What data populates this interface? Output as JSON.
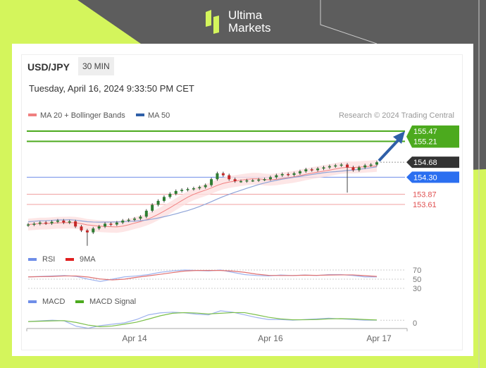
{
  "brand": {
    "name_line1": "Ultima",
    "name_line2": "Markets",
    "accent": "#d4f55c"
  },
  "header": {
    "symbol": "USD/JPY",
    "timeframe": "30 MIN",
    "datetime": "Tuesday, April 16, 2024 9:33:50 PM CET"
  },
  "chart_data": {
    "type": "candlestick",
    "legend": [
      {
        "name": "MA 20 + Bollinger Bands",
        "color": "#f08080"
      },
      {
        "name": "MA 50",
        "color": "#2f5fa8"
      }
    ],
    "credit": "Research © 2024 Trading Central",
    "levels": [
      {
        "value": 155.47,
        "label": "155.47",
        "color": "#4caa1e",
        "kind": "target"
      },
      {
        "value": 155.21,
        "label": "155.21",
        "color": "#4caa1e",
        "kind": "target"
      },
      {
        "value": 154.68,
        "label": "154.68",
        "color": "#333333",
        "kind": "last"
      },
      {
        "value": 154.3,
        "label": "154.30",
        "color": "#2b6ff0",
        "kind": "pivot"
      },
      {
        "value": 153.87,
        "label": "153.87",
        "color": "#e05050",
        "kind": "support"
      },
      {
        "value": 153.61,
        "label": "153.61",
        "color": "#e05050",
        "kind": "support"
      }
    ],
    "closes": [
      153.1,
      153.12,
      153.15,
      153.13,
      153.17,
      153.2,
      153.15,
      153.18,
      153.05,
      152.95,
      152.9,
      153.0,
      153.05,
      153.12,
      153.1,
      153.15,
      153.2,
      153.22,
      153.25,
      153.3,
      153.45,
      153.6,
      153.7,
      153.8,
      153.88,
      153.95,
      153.98,
      154.0,
      154.02,
      154.05,
      154.1,
      154.25,
      154.4,
      154.35,
      154.25,
      154.2,
      154.2,
      154.22,
      154.22,
      154.24,
      154.25,
      154.3,
      154.35,
      154.38,
      154.36,
      154.4,
      154.45,
      154.5,
      154.48,
      154.52,
      154.55,
      154.58,
      154.6,
      154.62,
      154.55,
      154.48,
      154.55,
      154.6,
      154.62,
      154.68
    ],
    "x_ticks": [
      {
        "label": "Apr 14",
        "index": 18
      },
      {
        "label": "Apr 16",
        "index": 41
      },
      {
        "label": "Apr 17",
        "index": 59
      }
    ],
    "rsi": {
      "legend": [
        {
          "name": "RSI",
          "color": "#6f8ee8"
        },
        {
          "name": "9MA",
          "color": "#e02020"
        }
      ],
      "levels": [
        "70",
        "50",
        "30"
      ],
      "values": [
        55,
        56,
        57,
        58,
        56,
        50,
        45,
        50,
        55,
        57,
        60,
        65,
        68,
        70,
        69,
        68,
        70,
        65,
        60,
        58,
        57,
        59,
        58,
        59,
        58,
        60,
        60,
        58,
        55,
        55
      ]
    },
    "macd": {
      "legend": [
        {
          "name": "MACD",
          "color": "#6f8ee8"
        },
        {
          "name": "MACD Signal",
          "color": "#4caa1e"
        }
      ],
      "zero_label": "0",
      "values": [
        0.02,
        0.03,
        0.04,
        0.03,
        -0.05,
        -0.08,
        -0.04,
        -0.02,
        0.0,
        0.05,
        0.12,
        0.15,
        0.16,
        0.15,
        0.13,
        0.12,
        0.18,
        0.16,
        0.12,
        0.08,
        0.05,
        0.05,
        0.04,
        0.05,
        0.06,
        0.07,
        0.06,
        0.05,
        0.04,
        0.04
      ]
    }
  }
}
